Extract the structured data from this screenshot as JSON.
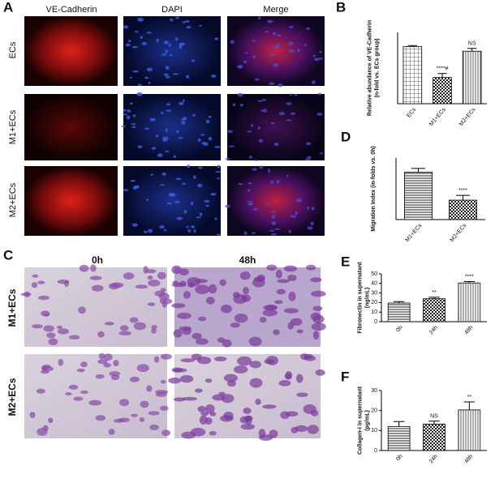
{
  "panel_labels": [
    "A",
    "B",
    "C",
    "D",
    "E",
    "F"
  ],
  "panel_a": {
    "columns": [
      "VE-Cadherin",
      "DAPI",
      "Merge"
    ],
    "rows": [
      "ECs",
      "M1+ECs",
      "M2+ECs"
    ]
  },
  "panel_c": {
    "columns": [
      "0h",
      "48h"
    ],
    "rows": [
      "M1+ECs",
      "M2+ECs"
    ]
  },
  "chart_data": [
    {
      "type": "bar",
      "y_label": [
        "Relative abundance of VE-Cadherin",
        "(n-fold vs. ECs group)"
      ],
      "categories": [
        "ECs",
        "M1+ECs",
        "M2+ECs"
      ],
      "values": [
        1.0,
        0.46,
        0.92
      ],
      "errors": [
        0.02,
        0.07,
        0.05
      ],
      "annotations": [
        null,
        "****#",
        "NS"
      ],
      "patterns": [
        "grid",
        "check",
        "vlines"
      ],
      "ylim": [
        0,
        1.25
      ]
    },
    {
      "type": "bar",
      "y_label": [
        "Migration Index (in-folds vs. 0h)"
      ],
      "categories": [
        "M1+ECs",
        "M2+ECs"
      ],
      "values": [
        1.0,
        0.41
      ],
      "errors": [
        0.08,
        0.1
      ],
      "annotations": [
        null,
        "****"
      ],
      "patterns": [
        "hlines",
        "check"
      ],
      "ylim": [
        0,
        1.3
      ]
    },
    {
      "type": "bar",
      "y_label": [
        "Fibronectin in supernatant",
        "(ng/mL)"
      ],
      "categories": [
        "0h",
        "24h",
        "48h"
      ],
      "values": [
        19.5,
        24,
        40.5
      ],
      "errors": [
        1.5,
        1.5,
        1.5
      ],
      "annotations": [
        null,
        "**",
        "****"
      ],
      "patterns": [
        "hlines",
        "check",
        "vlines"
      ],
      "ylim": [
        0,
        50
      ],
      "yticks": [
        0,
        10,
        20,
        30,
        40,
        50
      ]
    },
    {
      "type": "bar",
      "y_label": [
        "Collagen-I in supernatant",
        "(pg/mL)"
      ],
      "categories": [
        "0h",
        "24h",
        "48h"
      ],
      "values": [
        12,
        13.2,
        20.3
      ],
      "errors": [
        2.5,
        1.5,
        4
      ],
      "annotations": [
        null,
        "NS",
        "**"
      ],
      "patterns": [
        "hlines",
        "check",
        "vlines"
      ],
      "ylim": [
        0,
        30
      ],
      "yticks": [
        0,
        10,
        20,
        30
      ]
    }
  ]
}
